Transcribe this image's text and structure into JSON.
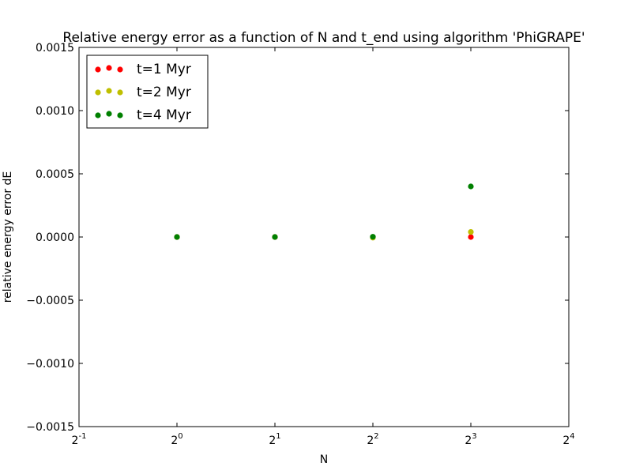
{
  "chart_data": {
    "type": "scatter",
    "title": "Relative energy error as a function of N and t_end using algorithm 'PhiGRAPE'",
    "xlabel": "N",
    "ylabel": "relative energy error dE",
    "xscale": "log2",
    "xlim": [
      0.5,
      16
    ],
    "ylim": [
      -0.0015,
      0.0015
    ],
    "xticks": [
      {
        "value": 0.5,
        "base": "2",
        "exp": "-1"
      },
      {
        "value": 1,
        "base": "2",
        "exp": "0"
      },
      {
        "value": 2,
        "base": "2",
        "exp": "1"
      },
      {
        "value": 4,
        "base": "2",
        "exp": "2"
      },
      {
        "value": 8,
        "base": "2",
        "exp": "3"
      },
      {
        "value": 16,
        "base": "2",
        "exp": "4"
      }
    ],
    "yticks": [
      {
        "value": 0.0015,
        "label": "0.0015"
      },
      {
        "value": 0.001,
        "label": "0.0010"
      },
      {
        "value": 0.0005,
        "label": "0.0005"
      },
      {
        "value": 0.0,
        "label": "0.0000"
      },
      {
        "value": -0.0005,
        "label": "−0.0005"
      },
      {
        "value": -0.001,
        "label": "−0.0010"
      },
      {
        "value": -0.0015,
        "label": "−0.0015"
      }
    ],
    "grid": false,
    "legend_position": "top-left",
    "series": [
      {
        "name": "t=1 Myr",
        "color": "#ff0000",
        "x": [
          1,
          2,
          4,
          8
        ],
        "y": [
          0.0,
          0.0,
          0.0,
          0.0
        ]
      },
      {
        "name": "t=2 Myr",
        "color": "#bfbf00",
        "x": [
          1,
          2,
          4,
          8
        ],
        "y": [
          0.0,
          0.0,
          -5e-06,
          4e-05
        ]
      },
      {
        "name": "t=4 Myr",
        "color": "#008000",
        "x": [
          1,
          2,
          4,
          8
        ],
        "y": [
          0.0,
          0.0,
          2e-06,
          0.0004
        ]
      }
    ]
  }
}
